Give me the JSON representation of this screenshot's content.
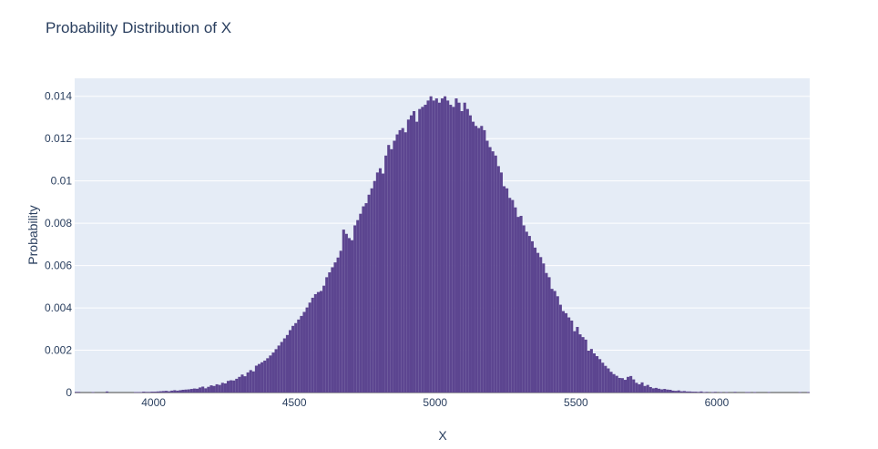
{
  "chart_data": {
    "type": "bar",
    "title": "Probability Distribution of X",
    "xlabel": "X",
    "ylabel": "Probability",
    "xlim": [
      3720,
      6330
    ],
    "ylim": [
      0,
      0.01485
    ],
    "xticks": [
      4000,
      4500,
      5000,
      5500,
      6000
    ],
    "xtick_labels": [
      "4000",
      "4500",
      "5000",
      "5500",
      "6000"
    ],
    "yticks": [
      0,
      0.002,
      0.004,
      0.006,
      0.008,
      0.01,
      0.012,
      0.014
    ],
    "ytick_labels": [
      "0",
      "0.002",
      "0.004",
      "0.006",
      "0.008",
      "0.01",
      "0.012",
      "0.014"
    ],
    "grid": true,
    "bin_start": 3720,
    "bin_width": 10,
    "colors": {
      "bar": "#5c4590",
      "plot_bg": "#e5ecf6",
      "grid": "#ffffff",
      "text": "#2a3f5f"
    },
    "values": [
      3e-05,
      3e-05,
      0.0,
      0.0,
      0.0,
      0.0,
      2e-05,
      0.0,
      0.0,
      0.0,
      0.0,
      5e-05,
      0.0,
      0.0,
      0.0,
      0.0,
      0.0,
      0.0,
      0.0,
      0.0,
      0.0,
      2e-05,
      2e-05,
      2e-05,
      4e-05,
      3e-05,
      3e-05,
      4e-05,
      4e-05,
      5e-05,
      6e-05,
      7e-05,
      8e-05,
      6e-05,
      9e-05,
      0.00011,
      9e-05,
      0.00011,
      0.00013,
      0.00014,
      0.00015,
      0.00017,
      0.00019,
      0.00018,
      0.00024,
      0.00028,
      0.0002,
      0.00027,
      0.00034,
      0.00031,
      0.00039,
      0.00036,
      0.00046,
      0.00043,
      0.00055,
      0.00058,
      0.00057,
      0.00065,
      0.00074,
      0.00085,
      0.00077,
      0.00095,
      0.00106,
      0.001,
      0.00127,
      0.00135,
      0.00143,
      0.00151,
      0.00162,
      0.00175,
      0.00189,
      0.00205,
      0.00222,
      0.00239,
      0.00256,
      0.00272,
      0.00295,
      0.00315,
      0.00328,
      0.00345,
      0.00362,
      0.00381,
      0.00402,
      0.00425,
      0.00448,
      0.00465,
      0.00475,
      0.0048,
      0.00505,
      0.00545,
      0.00568,
      0.00592,
      0.00615,
      0.00638,
      0.0067,
      0.0077,
      0.0075,
      0.0073,
      0.0072,
      0.0079,
      0.00815,
      0.00845,
      0.0088,
      0.00895,
      0.00935,
      0.00965,
      0.01,
      0.0104,
      0.0106,
      0.01035,
      0.0112,
      0.0117,
      0.0115,
      0.0119,
      0.0122,
      0.0124,
      0.0125,
      0.0123,
      0.0129,
      0.0131,
      0.0133,
      0.0128,
      0.0134,
      0.0135,
      0.0136,
      0.0138,
      0.014,
      0.0138,
      0.0139,
      0.0137,
      0.0139,
      0.014,
      0.0138,
      0.0136,
      0.0135,
      0.0139,
      0.0137,
      0.0133,
      0.0137,
      0.0134,
      0.0131,
      0.0128,
      0.0126,
      0.0125,
      0.0126,
      0.0124,
      0.0119,
      0.0116,
      0.0114,
      0.0112,
      0.0107,
      0.0104,
      0.00975,
      0.00965,
      0.0092,
      0.0091,
      0.00875,
      0.0083,
      0.00835,
      0.0079,
      0.0076,
      0.0074,
      0.00715,
      0.00685,
      0.0066,
      0.0064,
      0.0061,
      0.00565,
      0.00545,
      0.0049,
      0.0048,
      0.00455,
      0.00415,
      0.00385,
      0.00375,
      0.00355,
      0.0034,
      0.0029,
      0.0031,
      0.00275,
      0.00262,
      0.0025,
      0.00198,
      0.00206,
      0.00185,
      0.00172,
      0.00158,
      0.00141,
      0.00126,
      0.00114,
      0.00098,
      0.00087,
      0.00079,
      0.00069,
      0.00068,
      0.0006,
      0.00074,
      0.00078,
      0.00062,
      0.00046,
      0.00039,
      0.00048,
      0.00031,
      0.00036,
      0.00026,
      0.0002,
      0.00022,
      0.00018,
      0.00015,
      0.00017,
      0.00014,
      0.00013,
      9e-05,
      8e-05,
      0.0001,
      6e-05,
      7e-05,
      5e-05,
      5e-05,
      4e-05,
      4e-05,
      3e-05,
      5e-05,
      2e-05,
      3e-05,
      0.0,
      2e-05,
      3e-05,
      0.0,
      2e-05,
      0.0,
      2e-05,
      0.0,
      0.0,
      3e-05,
      0.0,
      0.0,
      0.0,
      2e-05,
      2e-05,
      0.0,
      2e-05,
      0.0,
      0.0,
      0.0,
      0.0,
      2e-05,
      0.0,
      0.0,
      0.0,
      0.0,
      0.0,
      0.0,
      0.0,
      0.0,
      0.0,
      0.0,
      2e-05,
      0.0,
      0.0,
      2e-05
    ]
  }
}
